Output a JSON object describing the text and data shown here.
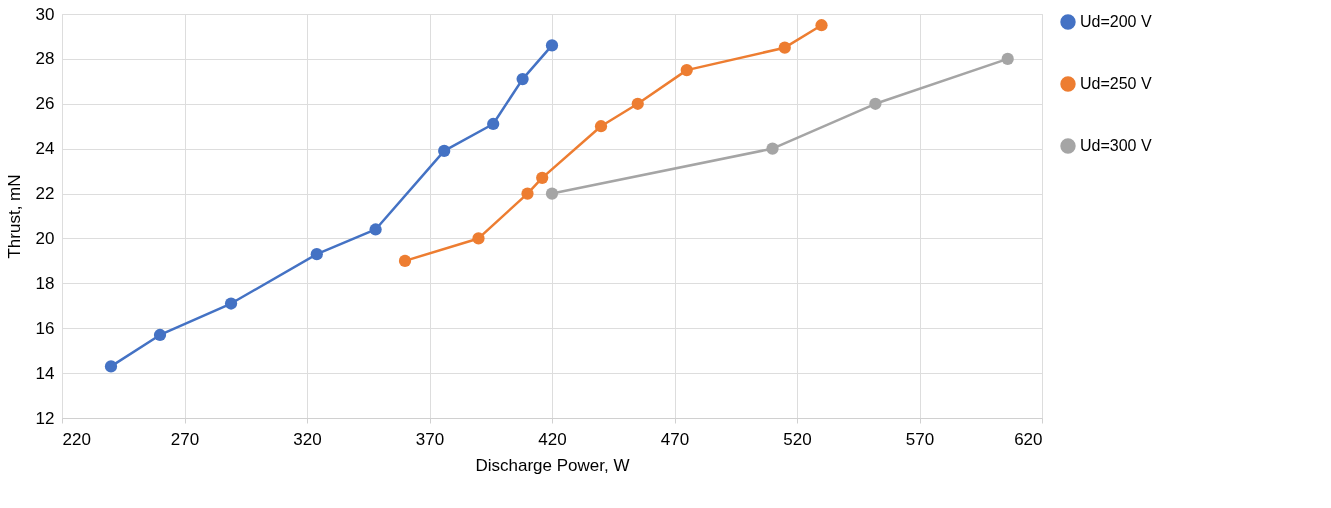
{
  "chart_data": {
    "type": "line",
    "xlabel": "Discharge Power, W",
    "ylabel": "Thrust, mN",
    "xlim": [
      220,
      620
    ],
    "xticks": [
      220,
      270,
      320,
      370,
      420,
      470,
      520,
      570,
      620
    ],
    "ylim": [
      12,
      30
    ],
    "yticks": [
      12,
      14,
      16,
      18,
      20,
      22,
      24,
      26,
      28,
      30
    ],
    "grid": true,
    "legend": "right",
    "marker": "circle",
    "line_style": "solid",
    "series": [
      {
        "name": "Ud=200 V",
        "color": "#4472c4",
        "x": [
          240,
          260,
          289,
          324,
          348,
          376,
          396,
          408,
          420
        ],
        "values": [
          14.3,
          15.7,
          17.1,
          19.3,
          20.4,
          23.9,
          25.1,
          27.1,
          28.6
        ]
      },
      {
        "name": "Ud=250 V",
        "color": "#ed7d31",
        "x": [
          360,
          390,
          410,
          416,
          440,
          455,
          475,
          515,
          530
        ],
        "values": [
          19,
          20,
          22,
          22.7,
          25,
          26,
          27.5,
          28.5,
          29.5
        ]
      },
      {
        "name": "Ud=300 V",
        "color": "#a5a5a5",
        "x": [
          420,
          510,
          552,
          606
        ],
        "values": [
          22,
          24,
          26,
          28
        ]
      }
    ]
  }
}
